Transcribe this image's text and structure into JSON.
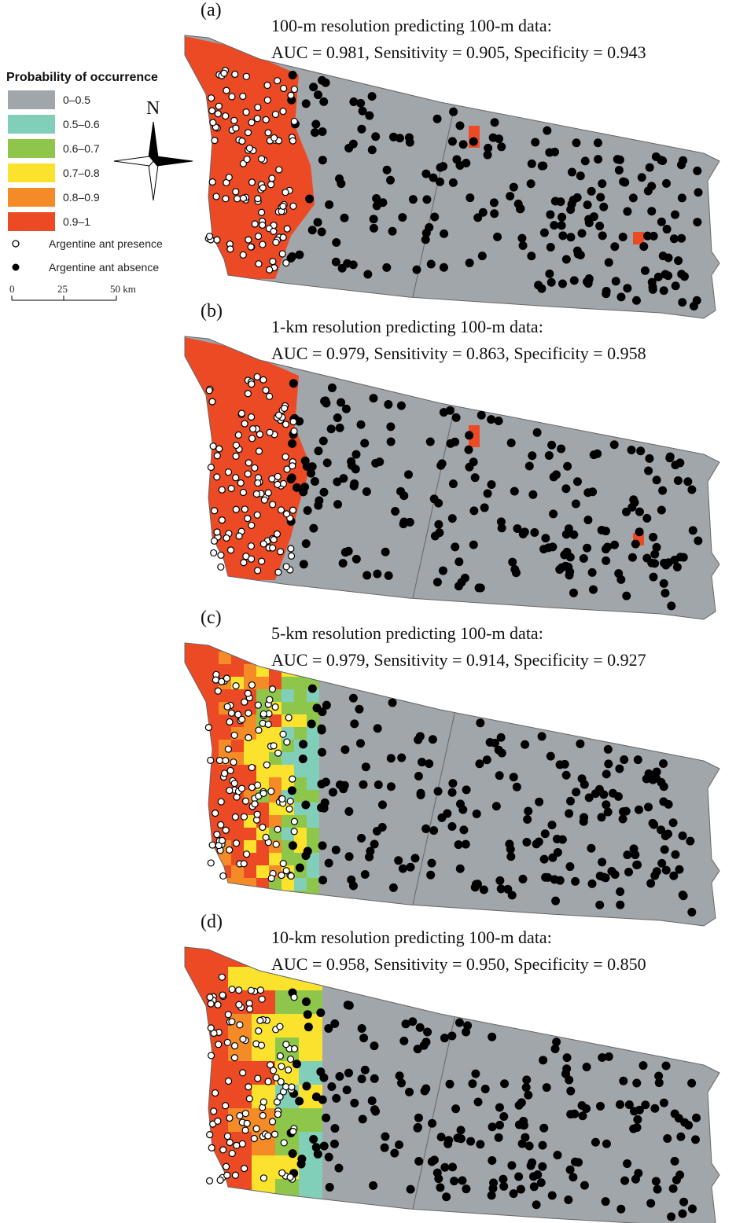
{
  "legend": {
    "title": "Probability of occurrence",
    "items": [
      {
        "label": "0–0.5",
        "color": "#a1a6ab"
      },
      {
        "label": "0.5–0.6",
        "color": "#82cfb9"
      },
      {
        "label": "0.6–0.7",
        "color": "#8dc64a"
      },
      {
        "label": "0.7–0.8",
        "color": "#fbe22c"
      },
      {
        "label": "0.8–0.9",
        "color": "#f58b27"
      },
      {
        "label": "0.9–1",
        "color": "#ec4a25"
      }
    ],
    "presence": "Argentine ant presence",
    "absence": "Argentine ant absence"
  },
  "north": "N",
  "scale": [
    "0",
    "25",
    "50 km"
  ],
  "panels": [
    {
      "label": "(a)",
      "line1": "100-m resolution predicting 100-m data:",
      "line2": "AUC = 0.981, Sensitivity = 0.905, Specificity = 0.943"
    },
    {
      "label": "(b)",
      "line1": "1-km resolution predicting 100-m data:",
      "line2": "AUC = 0.979, Sensitivity = 0.863, Specificity = 0.958"
    },
    {
      "label": "(c)",
      "line1": "5-km resolution predicting 100-m data:",
      "line2": "AUC = 0.979, Sensitivity = 0.914, Specificity = 0.927"
    },
    {
      "label": "(d)",
      "line1": "10-km resolution predicting 100-m data:",
      "line2": "AUC = 0.958, Sensitivity = 0.950, Specificity = 0.850"
    }
  ]
}
